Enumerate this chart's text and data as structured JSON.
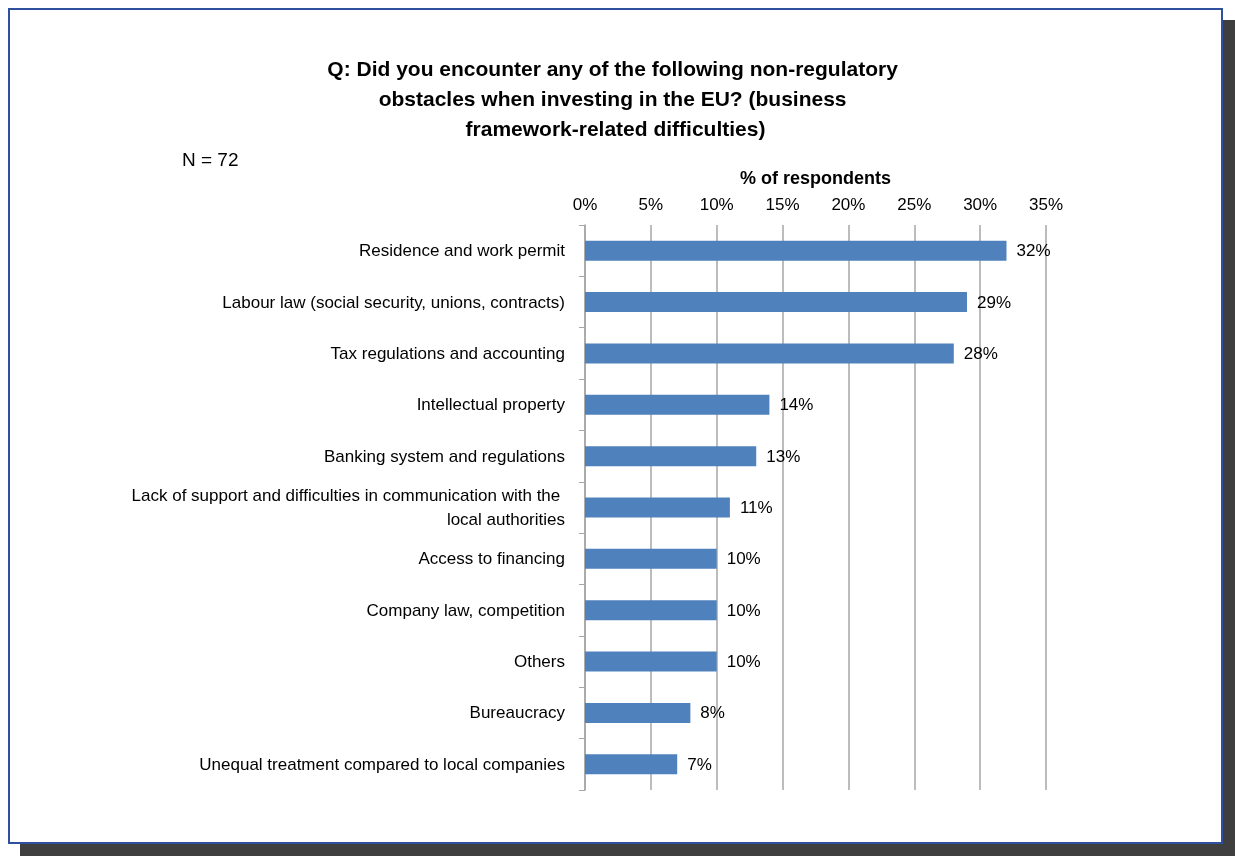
{
  "chart_data": {
    "type": "bar",
    "orientation": "horizontal",
    "title": "Q: Did you encounter any of the following non-regulatory obstacles when investing in the EU? (business framework-related difficulties)",
    "xlabel": "% of respondents",
    "annotations": [
      "N = 72"
    ],
    "categories": [
      "Residence and work permit",
      "Labour law (social security, unions, contracts)",
      "Tax regulations and accounting",
      "Intellectual property",
      "Banking system and regulations",
      "Lack of support and difficulties in communication with the local authorities",
      "Access to financing",
      "Company law, competition",
      "Others",
      "Bureaucracy",
      "Unequal treatment compared to local companies"
    ],
    "values": [
      32,
      29,
      28,
      14,
      13,
      11,
      10,
      10,
      10,
      8,
      7
    ],
    "value_labels": [
      "32%",
      "29%",
      "28%",
      "14%",
      "13%",
      "11%",
      "10%",
      "10%",
      "10%",
      "8%",
      "7%"
    ],
    "color": "#4f81bd",
    "xlim": [
      0,
      35
    ],
    "xticks": [
      {
        "value": 0,
        "label": "0%"
      },
      {
        "value": 5,
        "label": "5%"
      },
      {
        "value": 10,
        "label": "10%"
      },
      {
        "value": 15,
        "label": "15%"
      },
      {
        "value": 20,
        "label": "20%"
      },
      {
        "value": 25,
        "label": "25%"
      },
      {
        "value": 30,
        "label": "30%"
      },
      {
        "value": 35,
        "label": "35%"
      }
    ],
    "grid": "x"
  }
}
